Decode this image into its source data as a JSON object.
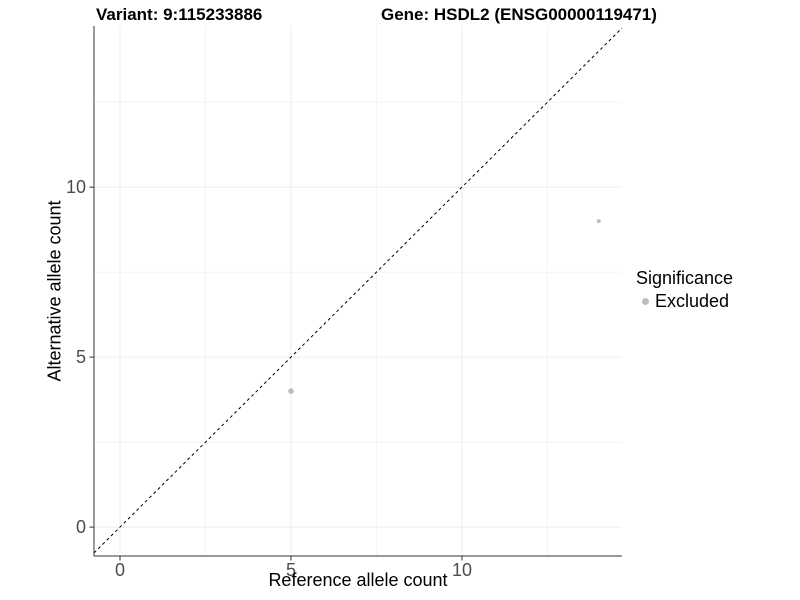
{
  "header": {
    "variant_title": "Variant: 9:115233886",
    "gene_title": "Gene: HSDL2 (ENSG00000119471)"
  },
  "chart_data": {
    "type": "scatter",
    "xlabel": "Reference allele count",
    "ylabel": "Alternative allele count",
    "xlim": [
      -0.76,
      14.68
    ],
    "ylim": [
      -0.85,
      14.74
    ],
    "x_major_ticks": [
      0,
      5,
      10
    ],
    "x_minor_ticks": [
      2.5,
      7.5,
      12.5
    ],
    "y_major_ticks": [
      0,
      5,
      10
    ],
    "y_minor_ticks": [
      2.5,
      7.5,
      12.5
    ],
    "grid": true,
    "points": [
      {
        "x": 5,
        "y": 4,
        "r": 2.8,
        "series": "Excluded"
      },
      {
        "x": 14,
        "y": 9,
        "r": 2.0,
        "series": "Excluded"
      }
    ],
    "abline": {
      "slope": 1,
      "intercept": 0,
      "style": "dashed",
      "color": "#000000"
    },
    "legend": {
      "position": "right",
      "title": "Significance",
      "items": [
        {
          "label": "Excluded",
          "color": "#bdbdbd"
        }
      ]
    }
  },
  "colors": {
    "background": "#ffffff",
    "point": "#bdbdbd",
    "axis_line": "#333333",
    "tick": "#333333",
    "tick_label": "#4d4d4d",
    "grid_major": "#ededed",
    "grid_minor": "#f4f4f4"
  }
}
